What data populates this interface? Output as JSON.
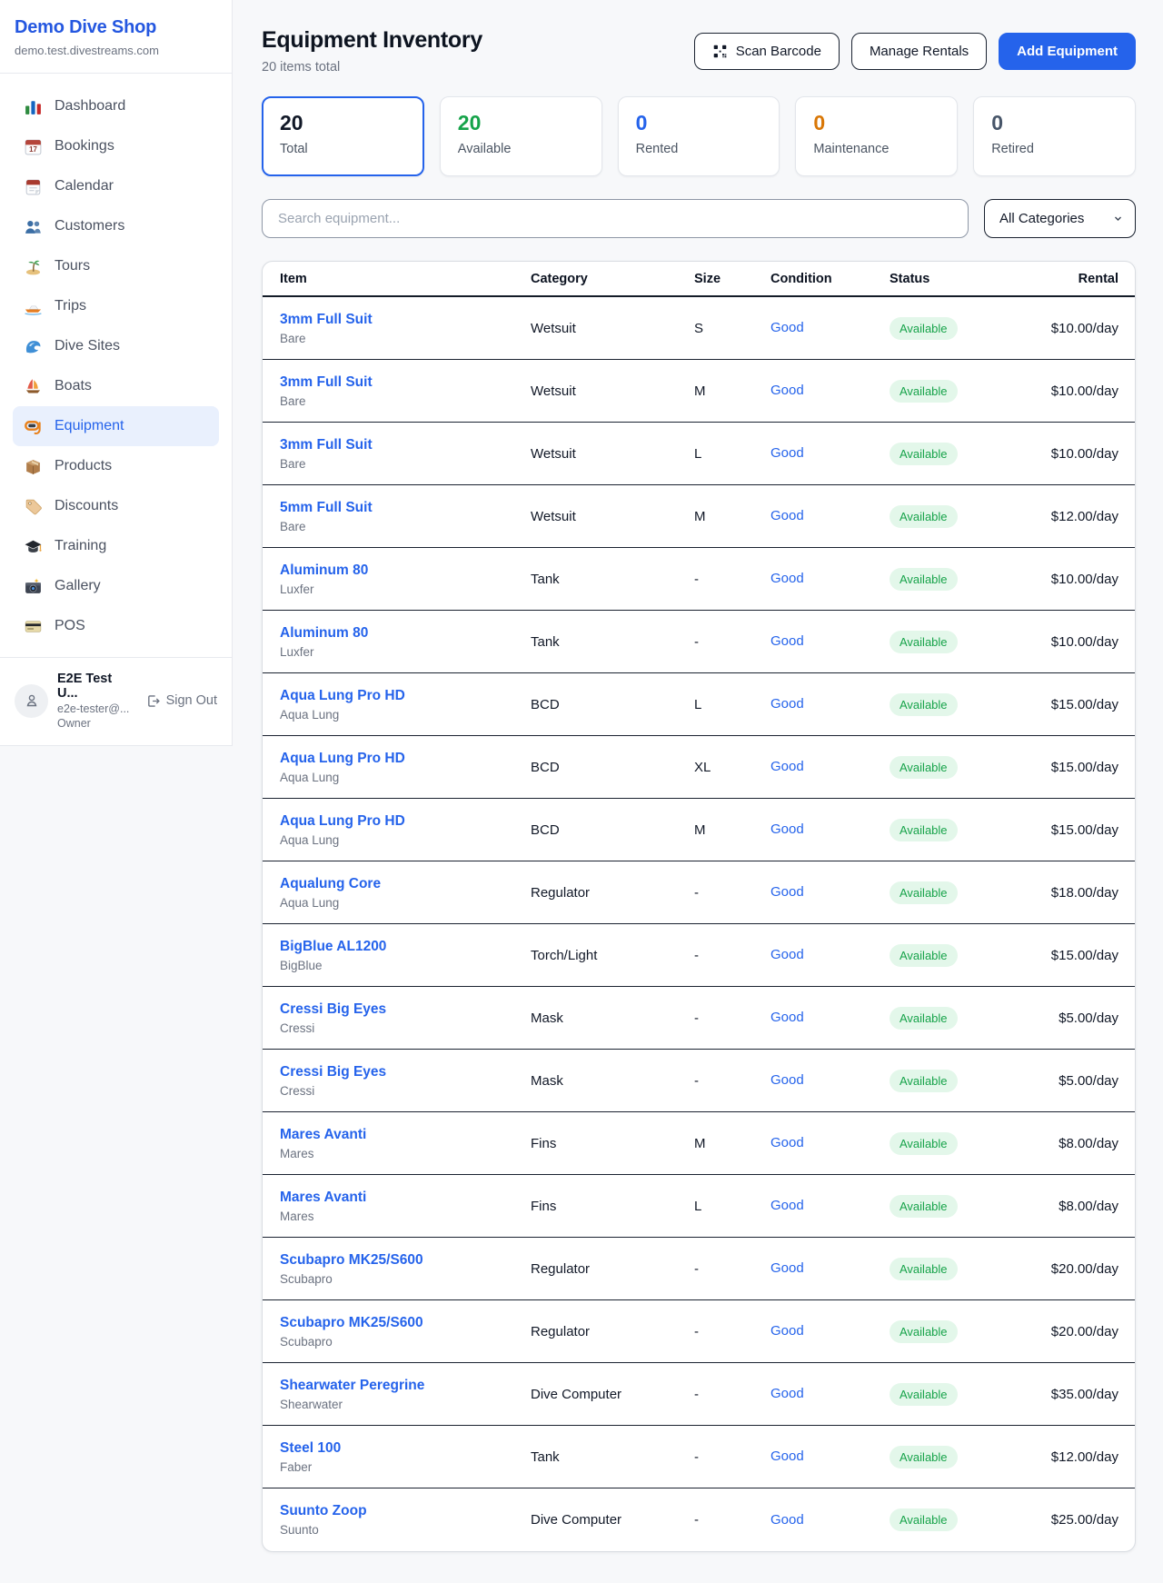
{
  "sidebar": {
    "brand": "Demo Dive Shop",
    "domain": "demo.test.divestreams.com",
    "items": [
      {
        "label": "Dashboard",
        "icon": "dashboard",
        "active": false
      },
      {
        "label": "Bookings",
        "icon": "bookings",
        "active": false
      },
      {
        "label": "Calendar",
        "icon": "calendar",
        "active": false
      },
      {
        "label": "Customers",
        "icon": "customers",
        "active": false
      },
      {
        "label": "Tours",
        "icon": "tours",
        "active": false
      },
      {
        "label": "Trips",
        "icon": "trips",
        "active": false
      },
      {
        "label": "Dive Sites",
        "icon": "dive-sites",
        "active": false
      },
      {
        "label": "Boats",
        "icon": "boats",
        "active": false
      },
      {
        "label": "Equipment",
        "icon": "equipment",
        "active": true
      },
      {
        "label": "Products",
        "icon": "products",
        "active": false
      },
      {
        "label": "Discounts",
        "icon": "discounts",
        "active": false
      },
      {
        "label": "Training",
        "icon": "training",
        "active": false
      },
      {
        "label": "Gallery",
        "icon": "gallery",
        "active": false
      },
      {
        "label": "POS",
        "icon": "pos",
        "active": false
      }
    ],
    "user": {
      "name": "E2E Test U...",
      "email": "e2e-tester@...",
      "role": "Owner",
      "sign_out": "Sign Out"
    }
  },
  "header": {
    "title": "Equipment Inventory",
    "subtitle": "20 items total",
    "scan_barcode": "Scan Barcode",
    "manage_rentals": "Manage Rentals",
    "add_equipment": "Add Equipment"
  },
  "stats": [
    {
      "value": "20",
      "label": "Total",
      "color": "#111827",
      "selected": true
    },
    {
      "value": "20",
      "label": "Available",
      "color": "#16a34a",
      "selected": false
    },
    {
      "value": "0",
      "label": "Rented",
      "color": "#2563eb",
      "selected": false
    },
    {
      "value": "0",
      "label": "Maintenance",
      "color": "#d97706",
      "selected": false
    },
    {
      "value": "0",
      "label": "Retired",
      "color": "#475569",
      "selected": false
    }
  ],
  "filters": {
    "search_placeholder": "Search equipment...",
    "category": "All Categories"
  },
  "table": {
    "headers": [
      "Item",
      "Category",
      "Size",
      "Condition",
      "Status",
      "Rental"
    ],
    "rows": [
      {
        "name": "3mm Full Suit",
        "brand": "Bare",
        "category": "Wetsuit",
        "size": "S",
        "condition": "Good",
        "status": "Available",
        "rental": "$10.00/day"
      },
      {
        "name": "3mm Full Suit",
        "brand": "Bare",
        "category": "Wetsuit",
        "size": "M",
        "condition": "Good",
        "status": "Available",
        "rental": "$10.00/day"
      },
      {
        "name": "3mm Full Suit",
        "brand": "Bare",
        "category": "Wetsuit",
        "size": "L",
        "condition": "Good",
        "status": "Available",
        "rental": "$10.00/day"
      },
      {
        "name": "5mm Full Suit",
        "brand": "Bare",
        "category": "Wetsuit",
        "size": "M",
        "condition": "Good",
        "status": "Available",
        "rental": "$12.00/day"
      },
      {
        "name": "Aluminum 80",
        "brand": "Luxfer",
        "category": "Tank",
        "size": "-",
        "condition": "Good",
        "status": "Available",
        "rental": "$10.00/day"
      },
      {
        "name": "Aluminum 80",
        "brand": "Luxfer",
        "category": "Tank",
        "size": "-",
        "condition": "Good",
        "status": "Available",
        "rental": "$10.00/day"
      },
      {
        "name": "Aqua Lung Pro HD",
        "brand": "Aqua Lung",
        "category": "BCD",
        "size": "L",
        "condition": "Good",
        "status": "Available",
        "rental": "$15.00/day"
      },
      {
        "name": "Aqua Lung Pro HD",
        "brand": "Aqua Lung",
        "category": "BCD",
        "size": "XL",
        "condition": "Good",
        "status": "Available",
        "rental": "$15.00/day"
      },
      {
        "name": "Aqua Lung Pro HD",
        "brand": "Aqua Lung",
        "category": "BCD",
        "size": "M",
        "condition": "Good",
        "status": "Available",
        "rental": "$15.00/day"
      },
      {
        "name": "Aqualung Core",
        "brand": "Aqua Lung",
        "category": "Regulator",
        "size": "-",
        "condition": "Good",
        "status": "Available",
        "rental": "$18.00/day"
      },
      {
        "name": "BigBlue AL1200",
        "brand": "BigBlue",
        "category": "Torch/Light",
        "size": "-",
        "condition": "Good",
        "status": "Available",
        "rental": "$15.00/day"
      },
      {
        "name": "Cressi Big Eyes",
        "brand": "Cressi",
        "category": "Mask",
        "size": "-",
        "condition": "Good",
        "status": "Available",
        "rental": "$5.00/day"
      },
      {
        "name": "Cressi Big Eyes",
        "brand": "Cressi",
        "category": "Mask",
        "size": "-",
        "condition": "Good",
        "status": "Available",
        "rental": "$5.00/day"
      },
      {
        "name": "Mares Avanti",
        "brand": "Mares",
        "category": "Fins",
        "size": "M",
        "condition": "Good",
        "status": "Available",
        "rental": "$8.00/day"
      },
      {
        "name": "Mares Avanti",
        "brand": "Mares",
        "category": "Fins",
        "size": "L",
        "condition": "Good",
        "status": "Available",
        "rental": "$8.00/day"
      },
      {
        "name": "Scubapro MK25/S600",
        "brand": "Scubapro",
        "category": "Regulator",
        "size": "-",
        "condition": "Good",
        "status": "Available",
        "rental": "$20.00/day"
      },
      {
        "name": "Scubapro MK25/S600",
        "brand": "Scubapro",
        "category": "Regulator",
        "size": "-",
        "condition": "Good",
        "status": "Available",
        "rental": "$20.00/day"
      },
      {
        "name": "Shearwater Peregrine",
        "brand": "Shearwater",
        "category": "Dive Computer",
        "size": "-",
        "condition": "Good",
        "status": "Available",
        "rental": "$35.00/day"
      },
      {
        "name": "Steel 100",
        "brand": "Faber",
        "category": "Tank",
        "size": "-",
        "condition": "Good",
        "status": "Available",
        "rental": "$12.00/day"
      },
      {
        "name": "Suunto Zoop",
        "brand": "Suunto",
        "category": "Dive Computer",
        "size": "-",
        "condition": "Good",
        "status": "Available",
        "rental": "$25.00/day"
      }
    ]
  },
  "colors": {
    "accent": "#2563eb",
    "brand_blue": "#2457e0",
    "badge_bg": "#e3f7ea",
    "badge_text": "#17a34a",
    "row_border": "#1a2230"
  }
}
